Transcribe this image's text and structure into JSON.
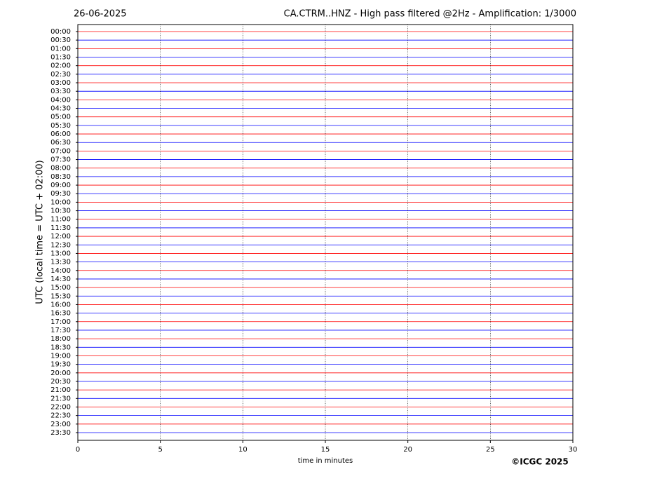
{
  "chart_data": {
    "type": "helicorder",
    "title_left": "26-06-2025",
    "title": "CA.CTRM..HNZ - High pass filtered @2Hz - Amplification: 1/3000",
    "y_label": "UTC (local time = UTC + 02:00)",
    "x_label": "time in minutes",
    "credit": "©ICGC 2025",
    "categories": [
      "00:00",
      "00:30",
      "01:00",
      "01:30",
      "02:00",
      "02:30",
      "03:00",
      "03:30",
      "04:00",
      "04:30",
      "05:00",
      "05:30",
      "06:00",
      "06:30",
      "07:00",
      "07:30",
      "08:00",
      "08:30",
      "09:00",
      "09:30",
      "10:00",
      "10:30",
      "11:00",
      "11:30",
      "12:00",
      "12:30",
      "13:00",
      "13:30",
      "14:00",
      "14:30",
      "15:00",
      "15:30",
      "16:00",
      "16:30",
      "17:00",
      "17:30",
      "18:00",
      "18:30",
      "19:00",
      "19:30",
      "20:00",
      "20:30",
      "21:00",
      "21:30",
      "22:00",
      "22:30",
      "23:00",
      "23:30"
    ],
    "colors": [
      "#ff0000",
      "#0000ff"
    ],
    "xlim": [
      0,
      30
    ],
    "xticks": [
      0,
      5,
      10,
      15,
      20,
      25,
      30
    ],
    "grid": true
  }
}
